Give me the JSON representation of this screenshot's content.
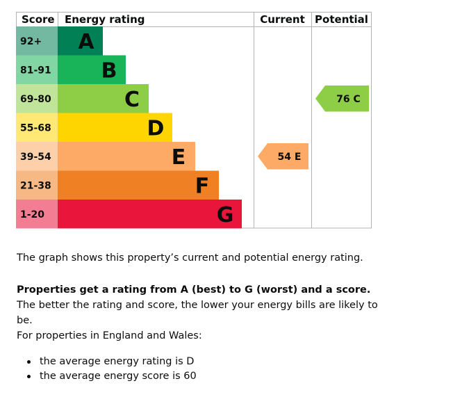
{
  "chart_data": {
    "type": "bar",
    "header": {
      "score": "Score",
      "energy_rating": "Energy rating",
      "current": "Current",
      "potential": "Potential"
    },
    "bands": [
      {
        "score": "92+",
        "letter": "A",
        "color": "#008054"
      },
      {
        "score": "81-91",
        "letter": "B",
        "color": "#19b459"
      },
      {
        "score": "69-80",
        "letter": "C",
        "color": "#8dce46"
      },
      {
        "score": "55-68",
        "letter": "D",
        "color": "#ffd500"
      },
      {
        "score": "39-54",
        "letter": "E",
        "color": "#fcaa65"
      },
      {
        "score": "21-38",
        "letter": "F",
        "color": "#ef8023"
      },
      {
        "score": "1-20",
        "letter": "G",
        "color": "#e9153b"
      }
    ],
    "current": {
      "value": 54,
      "band": "E",
      "label": "54 E"
    },
    "potential": {
      "value": 76,
      "band": "C",
      "label": "76 C"
    }
  },
  "text": {
    "summary": "The graph shows this property’s current and potential energy rating.",
    "rating_bold": "Properties get a rating from A (best) to G (worst) and a score.",
    "rating_rest": " The better the rating and score, the lower your energy bills are likely to be.",
    "region_intro": "For properties in England and Wales:",
    "average_items": [
      "the average energy rating is D",
      "the average energy score is 60"
    ]
  }
}
